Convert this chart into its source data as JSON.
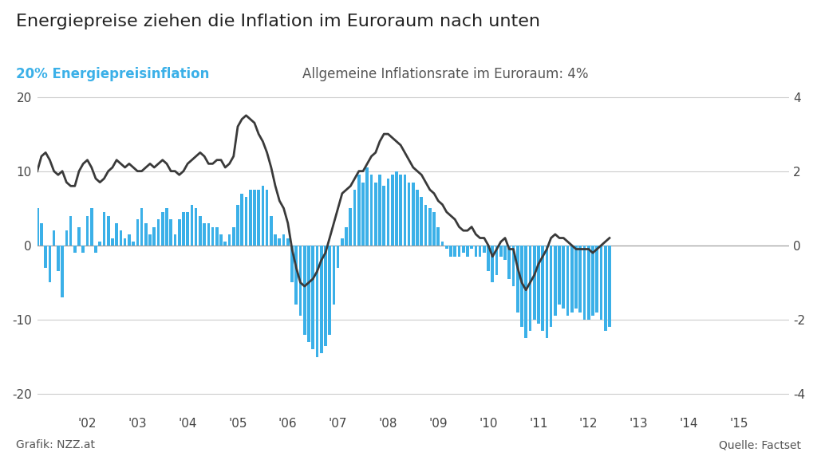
{
  "title": "Energiepreise ziehen die Inflation im Euroraum nach unten",
  "legend_left_label": "20% Energiepreisinflation",
  "legend_right_label": "Allgemeine Inflationsrate im Euroraum: 4%",
  "left_color": "#3bb0e8",
  "line_color": "#3a3a3a",
  "background_color": "#ffffff",
  "ylabel_left_top": "20",
  "ylabel_left_mid1": "10",
  "ylabel_left_zero": "0",
  "ylabel_left_neg10": "-10",
  "ylabel_left_neg20": "-20",
  "ylabel_right_top": "4",
  "ylabel_right_mid": "2",
  "ylabel_right_zero": "0",
  "ylabel_right_neg2": "-2",
  "ylabel_right_neg4": "-4",
  "footer_left": "Grafik: NZZ.at",
  "footer_right": "Quelle: Factset",
  "energy_inflation": [
    5.0,
    3.0,
    -3.0,
    -5.0,
    2.0,
    -3.5,
    -7.0,
    2.0,
    4.0,
    -1.0,
    2.5,
    -1.0,
    4.0,
    5.0,
    -1.0,
    0.5,
    4.5,
    4.0,
    1.0,
    3.0,
    2.0,
    1.0,
    1.5,
    0.5,
    3.5,
    5.0,
    3.0,
    1.5,
    2.5,
    3.5,
    4.5,
    5.0,
    3.5,
    1.5,
    3.5,
    4.5,
    4.5,
    5.5,
    5.0,
    4.0,
    3.0,
    3.0,
    2.5,
    2.5,
    1.5,
    0.5,
    1.5,
    2.5,
    5.5,
    7.0,
    6.5,
    7.5,
    7.5,
    7.5,
    8.0,
    7.5,
    4.0,
    1.5,
    1.0,
    1.5,
    1.0,
    -5.0,
    -8.0,
    -9.5,
    -12.0,
    -13.0,
    -14.0,
    -15.0,
    -14.5,
    -13.5,
    -12.0,
    -8.0,
    -3.0,
    1.0,
    2.5,
    5.0,
    7.5,
    9.5,
    8.5,
    10.5,
    9.5,
    8.5,
    9.5,
    8.0,
    9.0,
    9.5,
    10.0,
    9.5,
    9.5,
    8.5,
    8.5,
    7.5,
    6.5,
    5.5,
    5.0,
    4.5,
    2.5,
    0.5,
    -0.5,
    -1.5,
    -1.5,
    -1.5,
    -1.0,
    -1.5,
    -0.5,
    -1.5,
    -1.5,
    -1.0,
    -3.5,
    -5.0,
    -4.0,
    -1.5,
    -2.0,
    -4.5,
    -5.5,
    -9.0,
    -11.0,
    -12.5,
    -11.5,
    -10.0,
    -10.5,
    -11.5,
    -12.5,
    -11.0,
    -9.5,
    -8.0,
    -8.5,
    -9.5,
    -9.0,
    -8.5,
    -9.0,
    -10.0,
    -10.0,
    -9.5,
    -9.0,
    -10.0,
    -11.5,
    -11.0
  ],
  "general_inflation": [
    2.0,
    2.4,
    2.5,
    2.3,
    2.0,
    1.9,
    2.0,
    1.7,
    1.6,
    1.6,
    2.0,
    2.2,
    2.3,
    2.1,
    1.8,
    1.7,
    1.8,
    2.0,
    2.1,
    2.3,
    2.2,
    2.1,
    2.2,
    2.1,
    2.0,
    2.0,
    2.1,
    2.2,
    2.1,
    2.2,
    2.3,
    2.2,
    2.0,
    2.0,
    1.9,
    2.0,
    2.2,
    2.3,
    2.4,
    2.5,
    2.4,
    2.2,
    2.2,
    2.3,
    2.3,
    2.1,
    2.2,
    2.4,
    3.2,
    3.4,
    3.5,
    3.4,
    3.3,
    3.0,
    2.8,
    2.5,
    2.1,
    1.6,
    1.2,
    1.0,
    0.6,
    -0.1,
    -0.6,
    -1.0,
    -1.1,
    -1.0,
    -0.9,
    -0.7,
    -0.4,
    -0.2,
    0.2,
    0.6,
    1.0,
    1.4,
    1.5,
    1.6,
    1.8,
    2.0,
    2.0,
    2.2,
    2.4,
    2.5,
    2.8,
    3.0,
    3.0,
    2.9,
    2.8,
    2.7,
    2.5,
    2.3,
    2.1,
    2.0,
    1.9,
    1.7,
    1.5,
    1.4,
    1.2,
    1.1,
    0.9,
    0.8,
    0.7,
    0.5,
    0.4,
    0.4,
    0.5,
    0.3,
    0.2,
    0.2,
    0.0,
    -0.3,
    -0.1,
    0.1,
    0.2,
    -0.1,
    -0.1,
    -0.6,
    -1.0,
    -1.2,
    -1.0,
    -0.8,
    -0.5,
    -0.3,
    -0.1,
    0.2,
    0.3,
    0.2,
    0.2,
    0.1,
    0.0,
    -0.1,
    -0.1,
    -0.1,
    -0.1,
    -0.2,
    -0.1,
    0.0,
    0.1,
    0.2
  ],
  "n_bars": 138,
  "start_year": 2001,
  "bar_width": 0.7,
  "ylim_left": [
    -22,
    24
  ],
  "ylim_right": [
    -4.4,
    4.8
  ],
  "yticks_left": [
    -20,
    -10,
    0,
    10,
    20
  ],
  "yticks_right": [
    -4,
    -2,
    0,
    2,
    4
  ],
  "xtick_years": [
    2002,
    2003,
    2004,
    2005,
    2006,
    2007,
    2008,
    2009,
    2010,
    2011,
    2012,
    2013,
    2014,
    2015
  ],
  "xtick_labels": [
    "'02",
    "'03",
    "'04",
    "'05",
    "'06",
    "'07",
    "'08",
    "'09",
    "'10",
    "'11",
    "'12",
    "'13",
    "'14",
    "'15"
  ]
}
